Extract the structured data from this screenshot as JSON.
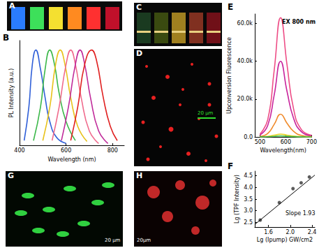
{
  "panels": [
    {
      "panel": "A"
    },
    {
      "panel": "C"
    },
    {
      "panel": "D",
      "scale_bar": "20 μm"
    },
    {
      "panel": "G",
      "scale_bar": "20 μm"
    },
    {
      "panel": "H",
      "scale_bar": "20μm"
    }
  ],
  "chart_data": [
    {
      "panel": "B",
      "type": "line",
      "x_label": "Wavelength (nm)",
      "y_label": "PL Intensity (a.u.)",
      "xlim": [
        400,
        850
      ],
      "xticks": [
        400,
        600,
        800
      ],
      "ylim": [
        0,
        1.1
      ],
      "tick_labels": "x",
      "grid": false,
      "series": [
        {
          "color": "#2f5fd8",
          "x": [
            420,
            440,
            455,
            470,
            490,
            510,
            530,
            560,
            600
          ],
          "values": [
            0.05,
            0.4,
            0.85,
            1.0,
            0.8,
            0.5,
            0.25,
            0.08,
            0.02
          ]
        },
        {
          "color": "#3cb84a",
          "x": [
            460,
            490,
            510,
            530,
            550,
            570,
            600,
            640
          ],
          "values": [
            0.05,
            0.4,
            0.8,
            1.0,
            0.85,
            0.55,
            0.25,
            0.05
          ]
        },
        {
          "color": "#e8c21a",
          "x": [
            500,
            530,
            555,
            575,
            595,
            620,
            650,
            690
          ],
          "values": [
            0.05,
            0.4,
            0.85,
            1.0,
            0.85,
            0.5,
            0.2,
            0.04
          ]
        },
        {
          "color": "#f06a8c",
          "x": [
            540,
            570,
            600,
            620,
            640,
            665,
            700,
            740
          ],
          "values": [
            0.05,
            0.4,
            0.85,
            1.0,
            0.85,
            0.5,
            0.15,
            0.02
          ]
        },
        {
          "color": "#c02a9a",
          "x": [
            580,
            610,
            640,
            660,
            680,
            705,
            740,
            780
          ],
          "values": [
            0.05,
            0.4,
            0.85,
            1.0,
            0.85,
            0.5,
            0.15,
            0.02
          ]
        },
        {
          "color": "#e02020",
          "x": [
            620,
            650,
            680,
            710,
            730,
            760,
            790,
            820
          ],
          "values": [
            0.05,
            0.4,
            0.85,
            1.0,
            0.9,
            0.5,
            0.2,
            0.05
          ]
        }
      ]
    },
    {
      "panel": "E",
      "type": "line",
      "title": "EX 800 nm",
      "x_label": "Wavelength(nm)",
      "y_label": "Upconversion Fluorescence",
      "xlim": [
        480,
        700
      ],
      "xticks": [
        500,
        600,
        700
      ],
      "ylim": [
        0,
        65000
      ],
      "yticks": [
        {
          "value": 0,
          "label": "0.0"
        },
        {
          "value": 20000,
          "label": "20.0k"
        },
        {
          "value": 40000,
          "label": "40.0k"
        },
        {
          "value": 60000,
          "label": "60.0k"
        }
      ],
      "grid": false,
      "series": [
        {
          "color": "#ee4d86",
          "x": [
            500,
            530,
            555,
            580,
            605,
            630,
            660,
            700
          ],
          "values": [
            1500,
            9000,
            35000,
            63000,
            38000,
            15000,
            4000,
            800
          ]
        },
        {
          "color": "#c8249c",
          "x": [
            500,
            530,
            555,
            580,
            605,
            630,
            660,
            700
          ],
          "values": [
            1000,
            6000,
            22000,
            40000,
            24000,
            10000,
            2800,
            500
          ]
        },
        {
          "color": "#f08a2a",
          "x": [
            500,
            530,
            555,
            580,
            605,
            630,
            660,
            700
          ],
          "values": [
            300,
            1800,
            6600,
            12000,
            7200,
            3000,
            840,
            150
          ]
        },
        {
          "color": "#e6d21e",
          "x": [
            500,
            530,
            555,
            580,
            605,
            630,
            660,
            700
          ],
          "values": [
            100,
            300,
            900,
            1500,
            950,
            400,
            120,
            30
          ]
        },
        {
          "color": "#4cc04c",
          "x": [
            500,
            530,
            555,
            580,
            605,
            630,
            660,
            700
          ],
          "values": [
            50,
            100,
            300,
            500,
            320,
            140,
            40,
            10
          ]
        }
      ]
    },
    {
      "panel": "F",
      "type": "scatter",
      "x_label": "Lg (Ipump) GW/cm2",
      "y_label": "Lg (TPF Intensity)",
      "annotation": "Slope 1.93",
      "xlim": [
        1.35,
        2.45
      ],
      "xticks": [
        1.6,
        {
          "value": 2.0,
          "label": "2.0"
        },
        2.4
      ],
      "ylim": [
        2.3,
        4.7
      ],
      "yticks": [
        2.5,
        {
          "value": 3.0,
          "label": "3.0"
        },
        3.5,
        {
          "value": 4.0,
          "label": "4.0"
        },
        4.5
      ],
      "grid": false,
      "series": [
        {
          "type": "scatter",
          "marker": "circle",
          "color": "#333333",
          "x": [
            1.45,
            1.8,
            2.05,
            2.2,
            2.35
          ],
          "values": [
            2.6,
            3.35,
            3.95,
            4.2,
            4.45
          ]
        },
        {
          "type": "line",
          "line_style": "solid",
          "color": "#000000",
          "x": [
            1.35,
            2.45
          ],
          "values": [
            2.41,
            4.53
          ]
        }
      ]
    }
  ]
}
